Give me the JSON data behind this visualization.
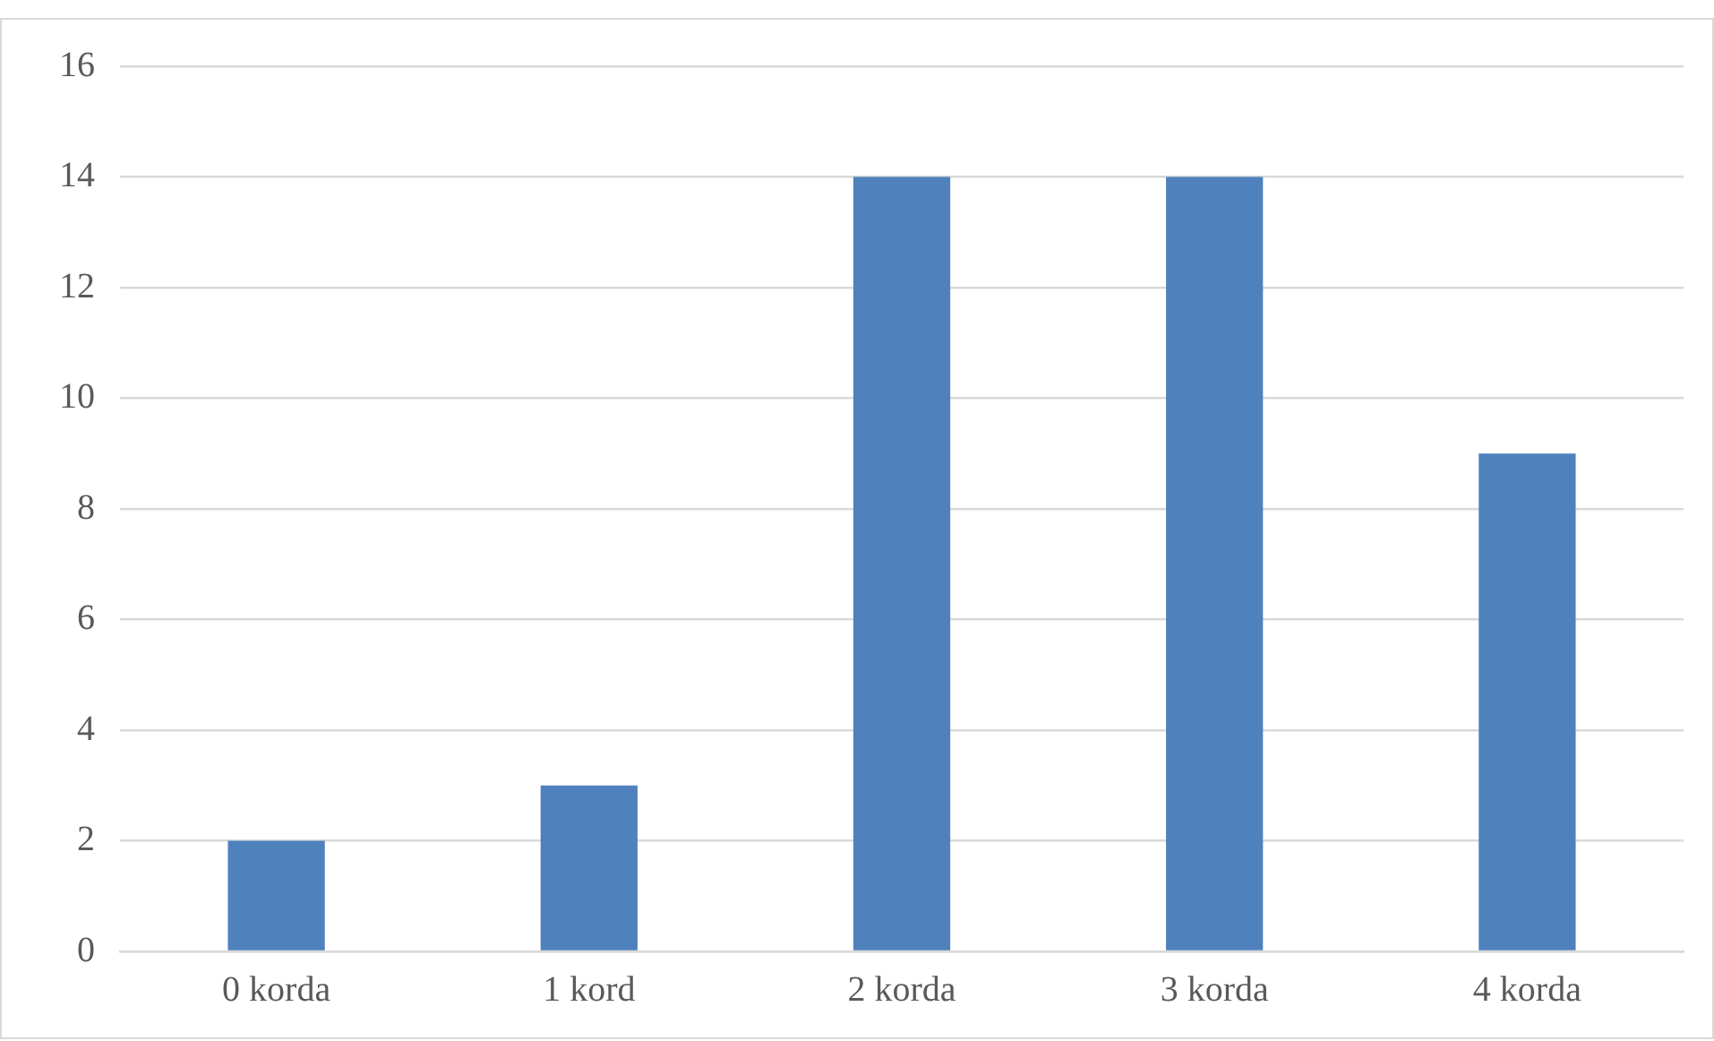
{
  "chart_data": {
    "type": "bar",
    "categories": [
      "0 korda",
      "1 kord",
      "2 korda",
      "3 korda",
      "4 korda"
    ],
    "values": [
      2,
      3,
      14,
      14,
      9
    ],
    "color": "#4f81bd",
    "ylim": [
      0,
      16
    ],
    "yticks": [
      0,
      2,
      4,
      6,
      8,
      10,
      12,
      14,
      16
    ],
    "grid": "y",
    "legend": false
  }
}
